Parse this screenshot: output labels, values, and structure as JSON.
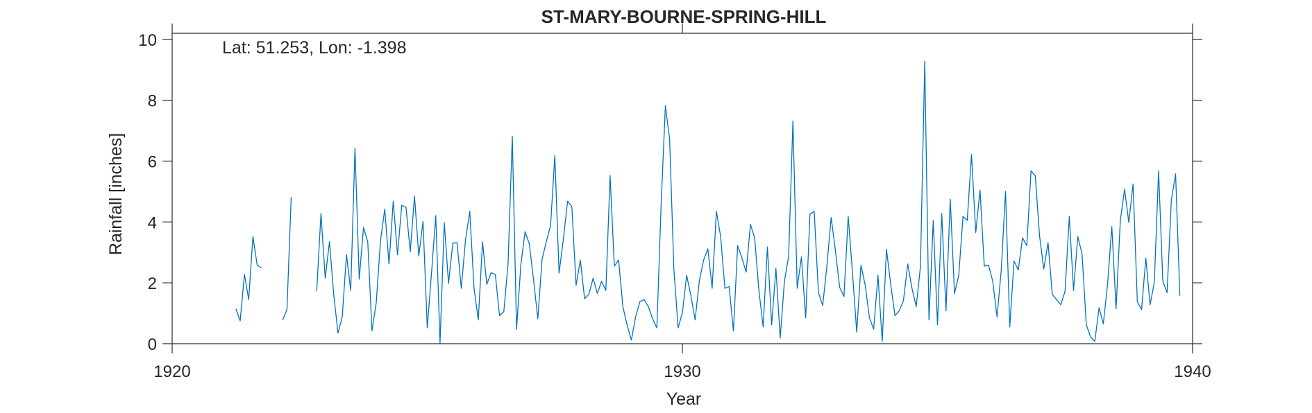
{
  "chart_data": {
    "type": "line",
    "title": "ST-MARY-BOURNE-SPRING-HILL",
    "annotation": "Lat: 51.253, Lon: -1.398",
    "xlabel": "Year",
    "ylabel": "Rainfall [inches]",
    "xlim": [
      1920,
      1940
    ],
    "ylim": [
      0,
      10.2
    ],
    "xticks": [
      1920,
      1930,
      1940
    ],
    "xtick_labels": [
      "1920",
      "1930",
      "1940"
    ],
    "yticks": [
      0,
      2,
      4,
      6,
      8,
      10
    ],
    "ytick_labels": [
      "0",
      "2",
      "4",
      "6",
      "8",
      "10"
    ],
    "grid": false,
    "box": true,
    "colors": {
      "series": "#0072bd",
      "axes": "#262626"
    },
    "series": [
      {
        "start_year": 1921,
        "start_month": 4,
        "values": [
          1.15,
          0.75,
          2.28,
          1.45,
          3.52,
          2.58,
          2.49,
          null,
          null,
          null,
          null,
          0.78,
          1.12,
          4.82,
          null,
          null,
          null,
          null,
          null,
          1.72,
          4.28,
          2.15,
          3.35,
          1.62,
          0.35,
          0.88,
          2.92,
          1.75,
          6.42,
          2.12,
          3.82,
          3.35,
          0.42,
          1.35,
          3.38,
          4.42,
          2.62,
          4.68,
          2.92,
          4.55,
          4.48,
          3.02,
          4.85,
          2.88,
          4.02,
          0.52,
          2.32,
          4.21,
          0.02,
          3.98,
          1.98,
          3.3,
          3.32,
          1.82,
          3.42,
          4.35,
          1.82,
          0.78,
          3.35,
          1.95,
          2.33,
          2.28,
          0.92,
          1.05,
          2.62,
          6.82,
          0.48,
          2.58,
          3.68,
          3.28,
          2.1,
          0.82,
          2.78,
          3.35,
          3.88,
          6.18,
          2.32,
          3.42,
          4.68,
          4.51,
          1.92,
          2.75,
          1.48,
          1.62,
          2.15,
          1.65,
          2.05,
          1.75,
          5.52,
          2.55,
          2.75,
          1.22,
          0.62,
          0.12,
          0.88,
          1.38,
          1.45,
          1.22,
          0.82,
          0.52,
          4.55,
          7.82,
          6.72,
          2.45,
          0.52,
          1.02,
          2.25,
          1.58,
          0.78,
          2.08,
          2.75,
          3.12,
          1.82,
          4.35,
          3.52,
          1.82,
          1.88,
          0.42,
          3.22,
          2.82,
          2.35,
          3.92,
          3.48,
          1.75,
          0.55,
          3.18,
          0.62,
          2.48,
          0.18,
          2.05,
          2.88,
          7.32,
          1.82,
          2.85,
          0.85,
          4.25,
          4.35,
          1.68,
          1.25,
          2.58,
          4.15,
          3.05,
          1.85,
          1.55,
          4.18,
          2.35,
          0.38,
          2.58,
          1.92,
          0.85,
          0.48,
          2.25,
          0.08,
          3.1,
          1.95,
          0.92,
          1.08,
          1.42,
          2.62,
          1.82,
          1.22,
          2.55,
          9.28,
          0.78,
          4.05,
          0.62,
          4.28,
          1.08,
          4.75,
          1.65,
          2.25,
          4.18,
          4.05,
          6.22,
          3.65,
          5.05,
          2.55,
          2.58,
          2.05,
          0.88,
          2.42,
          5.0,
          0.55,
          2.72,
          2.42,
          3.48,
          3.22,
          5.68,
          5.52,
          3.55,
          2.45,
          3.32,
          1.62,
          1.45,
          1.28,
          1.72,
          4.18,
          1.75,
          3.52,
          2.95,
          0.62,
          0.22,
          0.08,
          1.18,
          0.65,
          1.95,
          3.85,
          1.15,
          4.05,
          5.08,
          3.98,
          5.25,
          1.38,
          1.12,
          2.82,
          1.28,
          2.02,
          5.68,
          2.05,
          1.68,
          4.72,
          5.58,
          1.58
        ]
      }
    ]
  }
}
